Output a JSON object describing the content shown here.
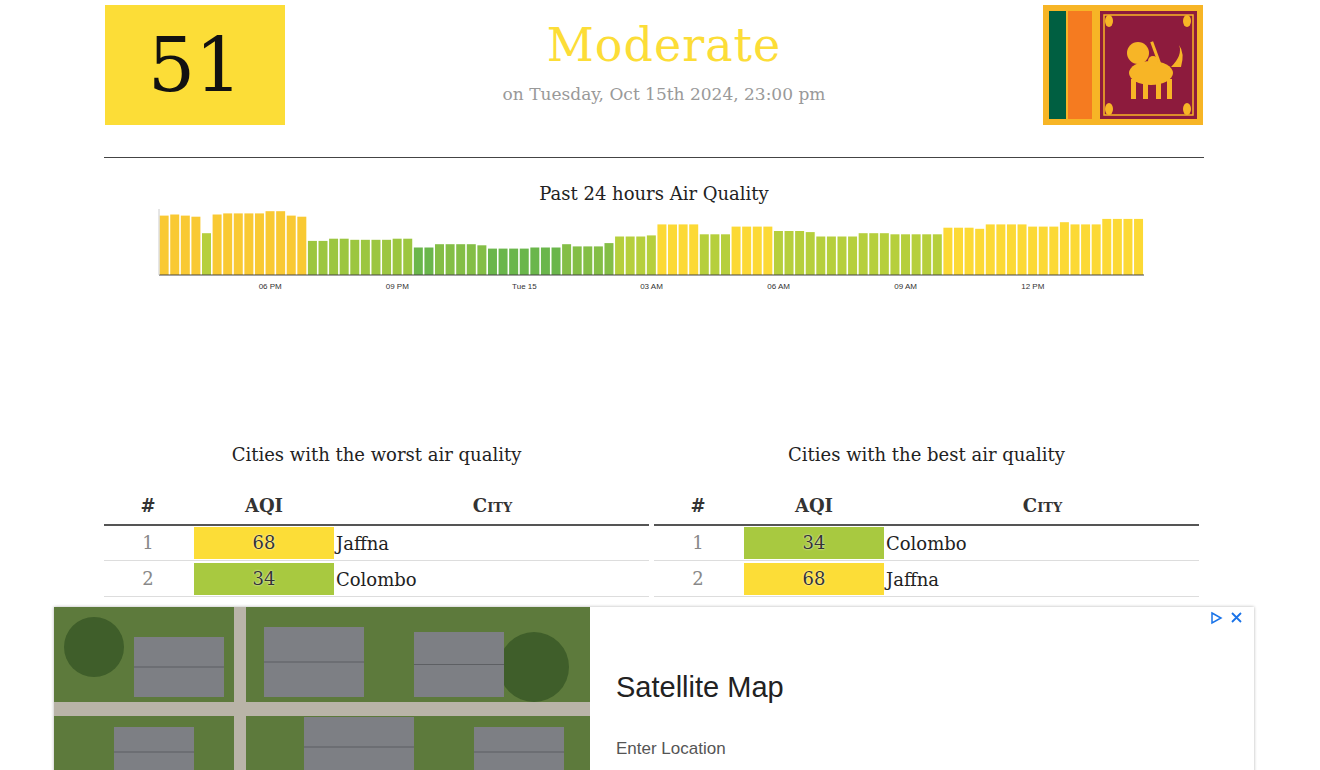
{
  "header": {
    "aqi": 51,
    "status": "Moderate",
    "date": "on Tuesday, Oct 15th 2024, 23:00 pm",
    "color": "#fcdd37"
  },
  "chart_data": {
    "type": "bar",
    "title": "Past 24 hours Air Quality",
    "categories": [
      null,
      null,
      null,
      null,
      null,
      null,
      null,
      null,
      null,
      null,
      "06 PM",
      null,
      null,
      null,
      null,
      null,
      null,
      null,
      null,
      null,
      null,
      null,
      "09 PM",
      null,
      null,
      null,
      null,
      null,
      null,
      null,
      null,
      null,
      null,
      null,
      "Tue 15",
      null,
      null,
      null,
      null,
      null,
      null,
      null,
      null,
      null,
      null,
      null,
      "03 AM",
      null,
      null,
      null,
      null,
      null,
      null,
      null,
      null,
      null,
      null,
      null,
      "06 AM",
      null,
      null,
      null,
      null,
      null,
      null,
      null,
      null,
      null,
      null,
      null,
      "09 AM",
      null,
      null,
      null,
      null,
      null,
      null,
      null,
      null,
      null,
      null,
      null,
      "12 PM",
      null,
      null,
      null,
      null,
      null,
      null,
      null,
      null,
      null,
      null
    ],
    "values": [
      54,
      55,
      54,
      53,
      38,
      55,
      56,
      56,
      56,
      56,
      58,
      58,
      54,
      53,
      31,
      31,
      33,
      33,
      32,
      32,
      32,
      32,
      33,
      33,
      25,
      25,
      28,
      28,
      28,
      28,
      27,
      24,
      24,
      24,
      24,
      25,
      25,
      25,
      28,
      26,
      26,
      26,
      29,
      35,
      35,
      35,
      36,
      46,
      46,
      46,
      46,
      37,
      37,
      37,
      44,
      44,
      44,
      44,
      40,
      40,
      40,
      39,
      35,
      35,
      35,
      35,
      38,
      38,
      38,
      37,
      37,
      37,
      37,
      37,
      43,
      43,
      43,
      42,
      46,
      46,
      46,
      46,
      44,
      44,
      44,
      48,
      46,
      46,
      46,
      51,
      51,
      51,
      51
    ],
    "colors": [
      "#f9c933",
      "#f9c933",
      "#f9c933",
      "#f9c933",
      "#b6cf3c",
      "#f9c933",
      "#f9c933",
      "#f9c933",
      "#f9c933",
      "#f9c933",
      "#f9c933",
      "#f9c933",
      "#f9c933",
      "#f9c933",
      "#9cc640",
      "#9cc640",
      "#9cc640",
      "#9cc640",
      "#9cc640",
      "#9cc640",
      "#9cc640",
      "#9cc640",
      "#9cc640",
      "#9cc640",
      "#6ab64b",
      "#6ab64b",
      "#84be46",
      "#84be46",
      "#84be46",
      "#84be46",
      "#84be46",
      "#6ab64b",
      "#6ab64b",
      "#6ab64b",
      "#6ab64b",
      "#6ab64b",
      "#6ab64b",
      "#6ab64b",
      "#84be46",
      "#84be46",
      "#84be46",
      "#84be46",
      "#84be46",
      "#b6cf3c",
      "#b6cf3c",
      "#b6cf3c",
      "#b6cf3c",
      "#fcd935",
      "#fcd935",
      "#fcd935",
      "#fcd935",
      "#b6cf3c",
      "#b6cf3c",
      "#b6cf3c",
      "#fcd935",
      "#fcd935",
      "#fcd935",
      "#fcd935",
      "#b6cf3c",
      "#b6cf3c",
      "#b6cf3c",
      "#b6cf3c",
      "#b6cf3c",
      "#b6cf3c",
      "#b6cf3c",
      "#b6cf3c",
      "#b6cf3c",
      "#b6cf3c",
      "#b6cf3c",
      "#b6cf3c",
      "#b6cf3c",
      "#b6cf3c",
      "#b6cf3c",
      "#b6cf3c",
      "#fcd935",
      "#fcd935",
      "#fcd935",
      "#fcd935",
      "#fcd935",
      "#fcd935",
      "#fcd935",
      "#fcd935",
      "#fcd935",
      "#fcd935",
      "#fcd935",
      "#fcd935",
      "#fcd935",
      "#fcd935",
      "#fcd935",
      "#fcd935",
      "#fcd935",
      "#fcd935",
      "#fcd935"
    ],
    "ylim": [
      0,
      60
    ],
    "grid": false,
    "tick_labels": "x"
  },
  "tables": [
    {
      "title": "Cities with the worst air quality",
      "columns": [
        "#",
        "AQI",
        "City"
      ],
      "rows": [
        {
          "rank": 1,
          "aqi": 68,
          "city": "Jaffna",
          "color": "#fcdd37"
        },
        {
          "rank": 2,
          "aqi": 34,
          "city": "Colombo",
          "color": "#a8c940"
        }
      ]
    },
    {
      "title": "Cities with the best air quality",
      "columns": [
        "#",
        "AQI",
        "City"
      ],
      "rows": [
        {
          "rank": 1,
          "aqi": 34,
          "city": "Colombo",
          "color": "#a8c940"
        },
        {
          "rank": 2,
          "aqi": 68,
          "city": "Jaffna",
          "color": "#fcdd37"
        }
      ]
    }
  ],
  "ad": {
    "title": "Satellite Map",
    "placeholder": "Enter Location"
  }
}
